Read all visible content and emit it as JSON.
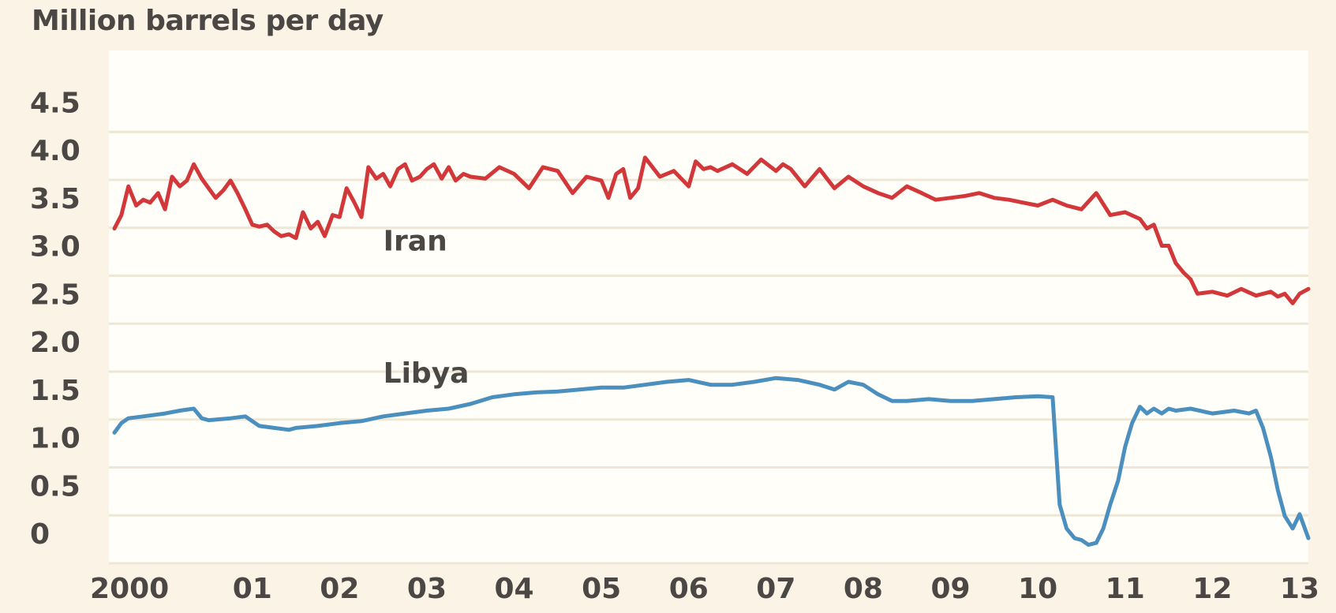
{
  "chart_data": {
    "type": "line",
    "ylabel": "Million barrels per day",
    "ylim": [
      0,
      4.5
    ],
    "yticks": [
      "0",
      "0.5",
      "1.0",
      "1.5",
      "2.0",
      "2.5",
      "3.0",
      "3.5",
      "4.0",
      "4.5"
    ],
    "xticks": [
      "2000",
      "01",
      "02",
      "03",
      "04",
      "05",
      "06",
      "07",
      "08",
      "09",
      "10",
      "11",
      "12",
      "13"
    ],
    "xrange": [
      1999.92,
      2013.6
    ],
    "grid": true,
    "series": [
      {
        "name": "Iran",
        "color": "#d2383a",
        "x": [
          1999.92,
          2000.0,
          2000.08,
          2000.17,
          2000.25,
          2000.33,
          2000.42,
          2000.5,
          2000.58,
          2000.67,
          2000.75,
          2000.83,
          2000.92,
          2001.0,
          2001.08,
          2001.17,
          2001.25,
          2001.33,
          2001.42,
          2001.5,
          2001.58,
          2001.67,
          2001.75,
          2001.83,
          2001.92,
          2002.0,
          2002.08,
          2002.17,
          2002.25,
          2002.33,
          2002.42,
          2002.5,
          2002.58,
          2002.67,
          2002.75,
          2002.83,
          2002.92,
          2003.0,
          2003.08,
          2003.17,
          2003.25,
          2003.33,
          2003.42,
          2003.5,
          2003.58,
          2003.67,
          2003.75,
          2003.83,
          2003.92,
          2004.0,
          2004.17,
          2004.33,
          2004.5,
          2004.67,
          2004.83,
          2005.0,
          2005.17,
          2005.33,
          2005.5,
          2005.58,
          2005.67,
          2005.75,
          2005.83,
          2005.92,
          2006.0,
          2006.17,
          2006.33,
          2006.5,
          2006.58,
          2006.67,
          2006.75,
          2006.83,
          2007.0,
          2007.17,
          2007.33,
          2007.5,
          2007.58,
          2007.67,
          2007.83,
          2008.0,
          2008.17,
          2008.33,
          2008.5,
          2008.67,
          2008.83,
          2009.0,
          2009.17,
          2009.33,
          2009.5,
          2009.67,
          2009.83,
          2010.0,
          2010.17,
          2010.33,
          2010.5,
          2010.67,
          2010.83,
          2011.0,
          2011.17,
          2011.33,
          2011.5,
          2011.67,
          2011.75,
          2011.83,
          2011.92,
          2012.0,
          2012.08,
          2012.17,
          2012.25,
          2012.33,
          2012.5,
          2012.67,
          2012.83,
          2013.0,
          2013.17,
          2013.25,
          2013.33,
          2013.42,
          2013.5,
          2013.6
        ],
        "y": [
          3.18,
          3.32,
          3.62,
          3.42,
          3.48,
          3.45,
          3.55,
          3.38,
          3.72,
          3.62,
          3.68,
          3.85,
          3.7,
          3.6,
          3.5,
          3.58,
          3.68,
          3.55,
          3.38,
          3.22,
          3.2,
          3.22,
          3.15,
          3.1,
          3.12,
          3.08,
          3.35,
          3.18,
          3.25,
          3.1,
          3.32,
          3.3,
          3.6,
          3.45,
          3.3,
          3.82,
          3.7,
          3.75,
          3.62,
          3.8,
          3.85,
          3.68,
          3.72,
          3.8,
          3.85,
          3.7,
          3.82,
          3.68,
          3.75,
          3.72,
          3.7,
          3.82,
          3.75,
          3.6,
          3.82,
          3.78,
          3.55,
          3.72,
          3.68,
          3.5,
          3.75,
          3.8,
          3.5,
          3.6,
          3.92,
          3.72,
          3.78,
          3.62,
          3.88,
          3.8,
          3.82,
          3.78,
          3.85,
          3.75,
          3.9,
          3.78,
          3.85,
          3.8,
          3.62,
          3.8,
          3.6,
          3.72,
          3.62,
          3.55,
          3.5,
          3.62,
          3.55,
          3.48,
          3.5,
          3.52,
          3.55,
          3.5,
          3.48,
          3.45,
          3.42,
          3.48,
          3.42,
          3.38,
          3.55,
          3.32,
          3.35,
          3.28,
          3.18,
          3.22,
          3.0,
          3.0,
          2.82,
          2.72,
          2.65,
          2.5,
          2.52,
          2.48,
          2.55,
          2.48,
          2.52,
          2.47,
          2.5,
          2.4,
          2.5,
          2.55
        ]
      },
      {
        "name": "Libya",
        "color": "#4b8fbf",
        "x": [
          1999.92,
          2000.0,
          2000.08,
          2000.25,
          2000.5,
          2000.67,
          2000.83,
          2000.92,
          2001.0,
          2001.25,
          2001.42,
          2001.58,
          2001.75,
          2001.92,
          2002.0,
          2002.25,
          2002.5,
          2002.75,
          2003.0,
          2003.25,
          2003.5,
          2003.75,
          2004.0,
          2004.25,
          2004.5,
          2004.75,
          2005.0,
          2005.25,
          2005.5,
          2005.75,
          2006.0,
          2006.25,
          2006.5,
          2006.75,
          2007.0,
          2007.25,
          2007.5,
          2007.75,
          2008.0,
          2008.17,
          2008.33,
          2008.5,
          2008.67,
          2008.83,
          2009.0,
          2009.25,
          2009.5,
          2009.75,
          2010.0,
          2010.25,
          2010.5,
          2010.67,
          2010.75,
          2010.83,
          2010.92,
          2011.0,
          2011.08,
          2011.17,
          2011.25,
          2011.33,
          2011.42,
          2011.5,
          2011.58,
          2011.67,
          2011.75,
          2011.83,
          2011.92,
          2012.0,
          2012.08,
          2012.25,
          2012.5,
          2012.75,
          2012.92,
          2013.0,
          2013.08,
          2013.17,
          2013.25,
          2013.33,
          2013.42,
          2013.5,
          2013.6
        ],
        "y": [
          1.05,
          1.15,
          1.2,
          1.22,
          1.25,
          1.28,
          1.3,
          1.2,
          1.18,
          1.2,
          1.22,
          1.12,
          1.1,
          1.08,
          1.1,
          1.12,
          1.15,
          1.17,
          1.22,
          1.25,
          1.28,
          1.3,
          1.35,
          1.42,
          1.45,
          1.47,
          1.48,
          1.5,
          1.52,
          1.52,
          1.55,
          1.58,
          1.6,
          1.55,
          1.55,
          1.58,
          1.62,
          1.6,
          1.55,
          1.5,
          1.58,
          1.55,
          1.45,
          1.38,
          1.38,
          1.4,
          1.38,
          1.38,
          1.4,
          1.42,
          1.43,
          1.42,
          0.3,
          0.05,
          -0.05,
          -0.07,
          -0.12,
          -0.1,
          0.05,
          0.3,
          0.55,
          0.9,
          1.15,
          1.32,
          1.25,
          1.3,
          1.25,
          1.3,
          1.28,
          1.3,
          1.25,
          1.28,
          1.25,
          1.28,
          1.1,
          0.8,
          0.45,
          0.18,
          0.05,
          0.2,
          -0.05
        ]
      }
    ]
  }
}
